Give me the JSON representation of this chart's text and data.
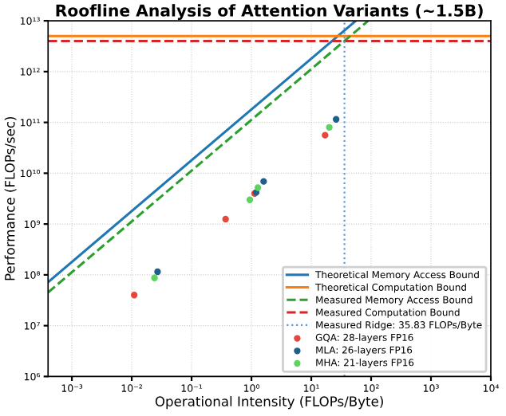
{
  "chart_data": {
    "type": "line",
    "title": "Roofline Analysis of Attention Variants (~1.5B)",
    "xlabel": "Operational Intensity (FLOPs/Byte)",
    "ylabel": "Performance (FLOPs/sec)",
    "log": "xy",
    "grid": true,
    "legend": "bottom right",
    "xlim": [
      0.0004,
      10000
    ],
    "ylim": [
      1000000,
      10000000000000
    ],
    "xticks": [
      {
        "value": 0.001,
        "label": "10⁻³"
      },
      {
        "value": 0.01,
        "label": "10⁻²"
      },
      {
        "value": 0.1,
        "label": "10⁻¹"
      },
      {
        "value": 1,
        "label": "10⁰"
      },
      {
        "value": 10,
        "label": "10¹"
      },
      {
        "value": 100,
        "label": "10²"
      },
      {
        "value": 1000,
        "label": "10³"
      },
      {
        "value": 10000,
        "label": "10⁴"
      }
    ],
    "yticks": [
      {
        "value": 1000000,
        "label": "10⁶"
      },
      {
        "value": 10000000,
        "label": "10⁷"
      },
      {
        "value": 100000000,
        "label": "10⁸"
      },
      {
        "value": 1000000000,
        "label": "10⁹"
      },
      {
        "value": 10000000000,
        "label": "10¹⁰"
      },
      {
        "value": 100000000000,
        "label": "10¹¹"
      },
      {
        "value": 1000000000000,
        "label": "10¹²"
      },
      {
        "value": 10000000000000,
        "label": "10¹³"
      }
    ],
    "series": [
      {
        "name": "Theoretical Memory Access Bound",
        "line_style": "solid",
        "color": "#1f77b4",
        "x": [
          0.0004,
          55
        ],
        "values": [
          72000000,
          9900000000000
        ]
      },
      {
        "name": "Theoretical Computation Bound",
        "line_style": "solid",
        "color": "#ff7f0e",
        "x": [
          0.0004,
          10000
        ],
        "values": [
          5000000000000,
          5000000000000
        ]
      },
      {
        "name": "Measured Memory Access Bound",
        "line_style": "dashed",
        "color": "#2ca02c",
        "x": [
          0.0004,
          89
        ],
        "values": [
          45000000,
          9970000000000
        ]
      },
      {
        "name": "Measured Computation Bound",
        "line_style": "dashed",
        "color": "#d62728",
        "x": [
          0.0004,
          10000
        ],
        "values": [
          4000000000000,
          4000000000000
        ]
      },
      {
        "name": "GQA: 28-layers FP16",
        "type": "scatter",
        "marker": "circle",
        "color": "#e8453c",
        "x": [
          0.011,
          0.37,
          1.13,
          17
        ],
        "values": [
          40000000,
          1250000000,
          4000000000,
          56000000000
        ]
      },
      {
        "name": "MLA: 26-layers FP16",
        "type": "scatter",
        "marker": "circle",
        "color": "#1f5f8b",
        "x": [
          0.027,
          1.2,
          1.6,
          26
        ],
        "values": [
          115000000,
          4200000000,
          6900000000,
          115000000000
        ]
      },
      {
        "name": "MHA: 21-layers FP16",
        "type": "scatter",
        "marker": "circle",
        "color": "#5fd35f",
        "x": [
          0.024,
          0.94,
          1.28,
          20
        ],
        "values": [
          87000000,
          3000000000,
          5200000000,
          80000000000
        ]
      }
    ],
    "ref_lines": [
      {
        "axis": "x",
        "value": 35.83,
        "label": "Measured Ridge: 35.83 FLOPs/Byte",
        "color": "#5b9bd5",
        "line_style": "dotted"
      }
    ]
  }
}
